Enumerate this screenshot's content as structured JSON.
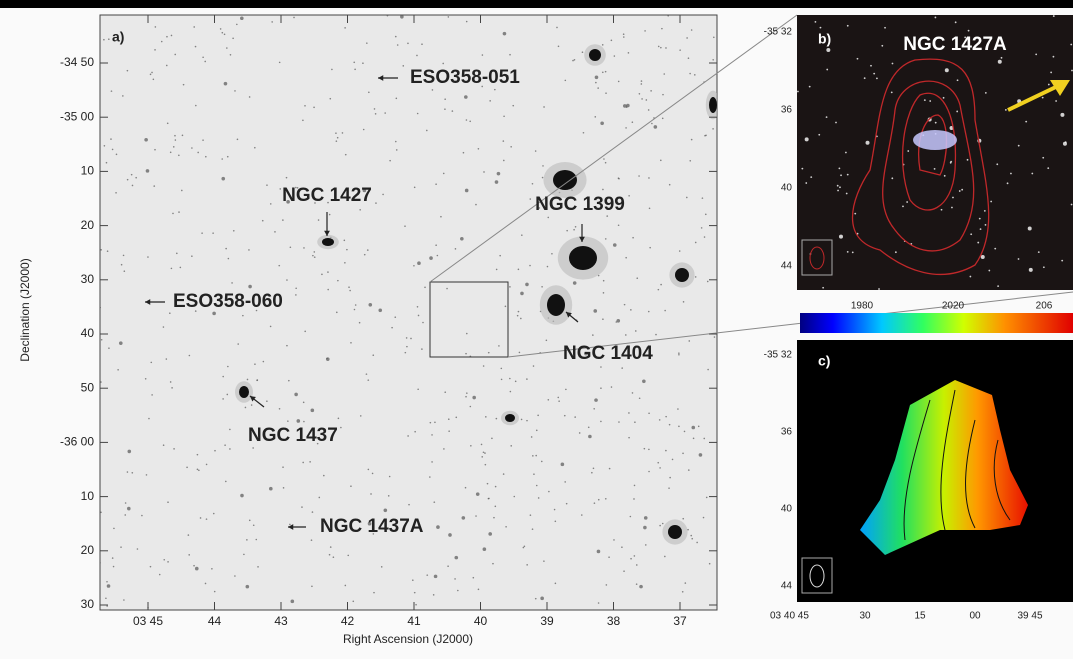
{
  "panel_a": {
    "label": "a)",
    "y_axis_title": "Declination (J2000)",
    "x_axis_title": "Right Ascension (J2000)",
    "y_ticks": [
      "-34 50",
      "-35 00",
      "10",
      "20",
      "30",
      "40",
      "50",
      "-36 00",
      "10",
      "20",
      "30"
    ],
    "x_ticks": [
      "03 45",
      "44",
      "43",
      "42",
      "41",
      "40",
      "39",
      "38",
      "37"
    ],
    "objects": [
      "ESO358-051",
      "NGC 1427",
      "NGC 1399",
      "ESO358-060",
      "NGC 1404",
      "NGC 1437",
      "NGC 1437A"
    ]
  },
  "panel_b": {
    "label": "b)",
    "title": "NGC 1427A",
    "y_ticks": [
      "-35 32",
      "36",
      "40",
      "44"
    ]
  },
  "colorbar": {
    "ticks": [
      "1980",
      "2020",
      "206"
    ]
  },
  "panel_c": {
    "label": "c)",
    "y_ticks": [
      "-35 32",
      "36",
      "40",
      "44"
    ],
    "x_ticks": [
      "03 40 45",
      "30",
      "15",
      "00",
      "39 45"
    ]
  }
}
